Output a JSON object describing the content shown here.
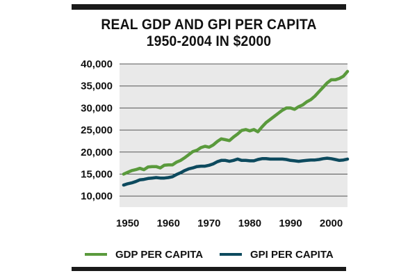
{
  "title": {
    "line1": "REAL GDP AND GPI PER CAPITA",
    "line2": "1950-2004 IN $2000"
  },
  "colors": {
    "gdp": "#5a9a3c",
    "gpi": "#0d4a5e",
    "plot_bg": "#e9e9e9",
    "grid": "#555555",
    "rule": "#1a1a1a"
  },
  "chart_data": {
    "type": "line",
    "title": "REAL GDP AND GPI PER CAPITA 1950-2004 IN $2000",
    "xlabel": "",
    "ylabel": "",
    "xlim": [
      1948,
      2004
    ],
    "ylim": [
      7500,
      40000
    ],
    "x_ticks": [
      "1950",
      "1960",
      "1970",
      "1980",
      "1990",
      "2000"
    ],
    "x_tick_values": [
      1950,
      1960,
      1970,
      1980,
      1990,
      2000
    ],
    "y_ticks": [
      "40,000",
      "35,000",
      "30,000",
      "25,000",
      "20,000",
      "15,000",
      "10,000"
    ],
    "y_tick_values": [
      40000,
      35000,
      30000,
      25000,
      20000,
      15000,
      10000
    ],
    "grid": "horizontal",
    "legend_position": "bottom",
    "series": [
      {
        "name": "GDP PER CAPITA",
        "color": "#5a9a3c",
        "x": [
          1949,
          1950,
          1951,
          1952,
          1953,
          1954,
          1955,
          1956,
          1957,
          1958,
          1959,
          1960,
          1961,
          1962,
          1963,
          1964,
          1965,
          1966,
          1967,
          1968,
          1969,
          1970,
          1971,
          1972,
          1973,
          1974,
          1975,
          1976,
          1977,
          1978,
          1979,
          1980,
          1981,
          1982,
          1983,
          1984,
          1985,
          1986,
          1987,
          1988,
          1989,
          1990,
          1991,
          1992,
          1993,
          1994,
          1995,
          1996,
          1997,
          1998,
          1999,
          2000,
          2001,
          2002,
          2003,
          2004
        ],
        "values": [
          15000,
          15400,
          15800,
          16000,
          16300,
          16000,
          16600,
          16700,
          16700,
          16400,
          17000,
          17100,
          17100,
          17700,
          18100,
          18700,
          19400,
          20100,
          20400,
          21000,
          21300,
          21100,
          21600,
          22400,
          23000,
          22800,
          22600,
          23400,
          24100,
          24900,
          25100,
          24800,
          25100,
          24600,
          25700,
          26700,
          27400,
          28100,
          28800,
          29500,
          30000,
          30000,
          29700,
          30300,
          30700,
          31400,
          31900,
          32700,
          33700,
          34700,
          35700,
          36400,
          36400,
          36700,
          37200,
          38300
        ]
      },
      {
        "name": "GPI PER CAPITA",
        "color": "#0d4a5e",
        "x": [
          1949,
          1950,
          1951,
          1952,
          1953,
          1954,
          1955,
          1956,
          1957,
          1958,
          1959,
          1960,
          1961,
          1962,
          1963,
          1964,
          1965,
          1966,
          1967,
          1968,
          1969,
          1970,
          1971,
          1972,
          1973,
          1974,
          1975,
          1976,
          1977,
          1978,
          1979,
          1980,
          1981,
          1982,
          1983,
          1984,
          1985,
          1986,
          1987,
          1988,
          1989,
          1990,
          1991,
          1992,
          1993,
          1994,
          1995,
          1996,
          1997,
          1998,
          1999,
          2000,
          2001,
          2002,
          2003,
          2004
        ],
        "values": [
          12500,
          12800,
          13000,
          13300,
          13700,
          13800,
          14000,
          14100,
          14200,
          14100,
          14100,
          14200,
          14400,
          14900,
          15300,
          15800,
          16200,
          16400,
          16700,
          16800,
          16800,
          17000,
          17300,
          17800,
          18100,
          18100,
          17900,
          18100,
          18400,
          18100,
          18100,
          18000,
          18000,
          18300,
          18500,
          18500,
          18400,
          18400,
          18400,
          18400,
          18300,
          18100,
          18000,
          17900,
          18000,
          18100,
          18200,
          18200,
          18300,
          18500,
          18600,
          18500,
          18300,
          18100,
          18200,
          18400
        ]
      }
    ]
  },
  "legend": {
    "gdp_label": "GDP PER CAPITA",
    "gpi_label": "GPI PER CAPITA"
  }
}
